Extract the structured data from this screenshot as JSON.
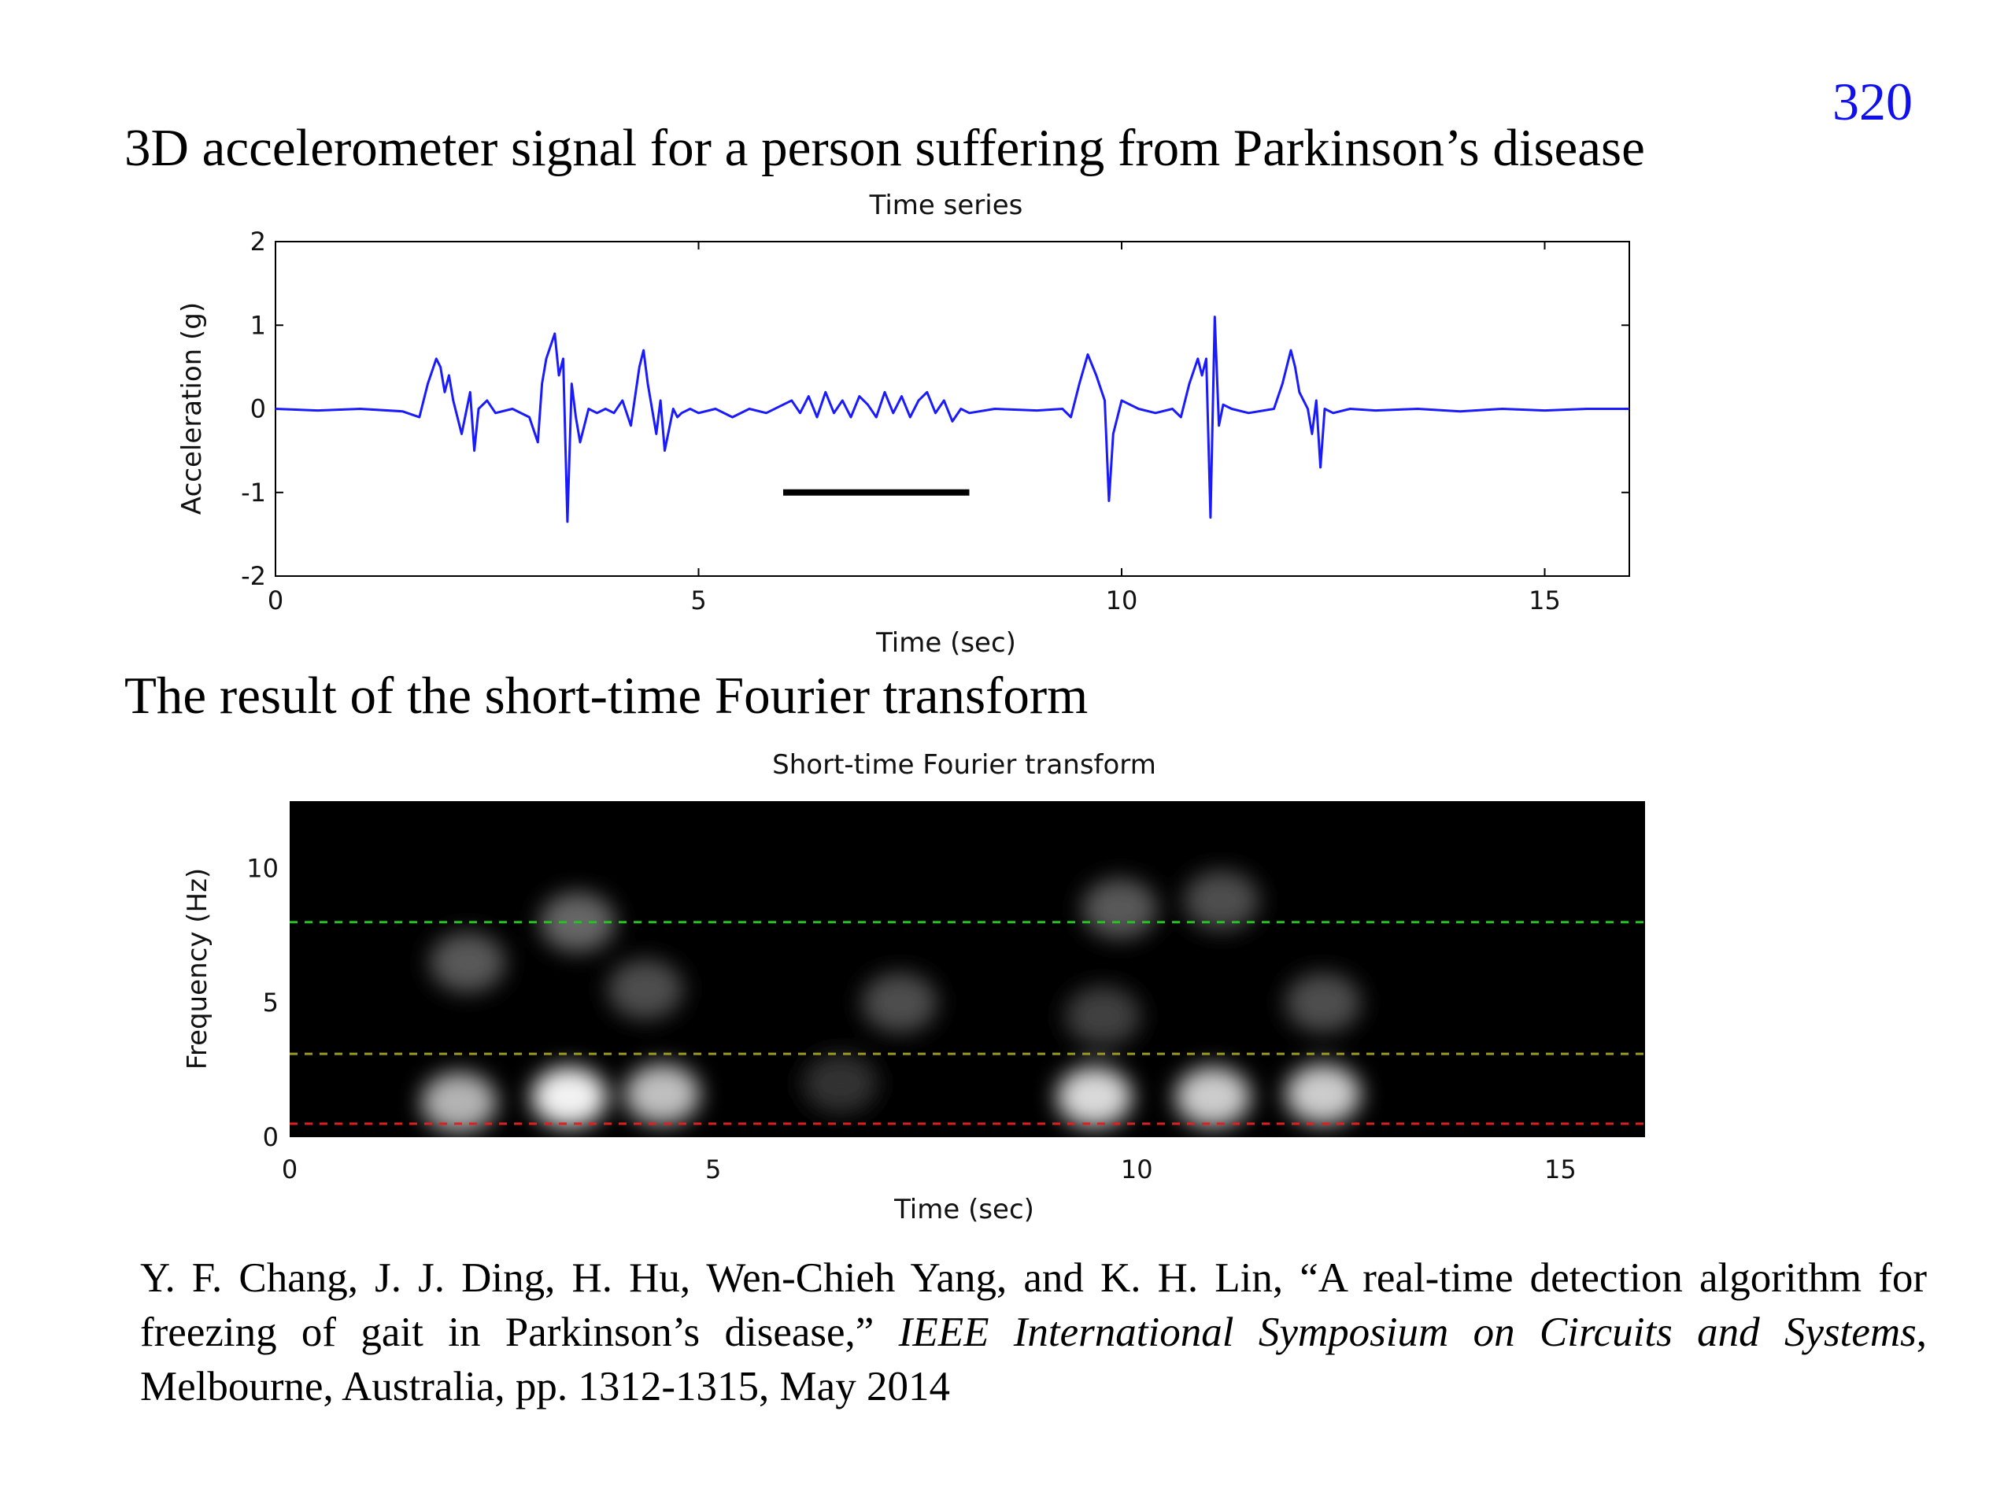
{
  "page_number": "320",
  "heading_1": "3D accelerometer signal for a person suffering from Parkinson’s disease",
  "heading_2": "The result of the short-time Fourier transform",
  "reference": {
    "part1": "Y. F. Chang, J. J. Ding, H. Hu, Wen-Chieh Yang, and K. H. Lin, “A real-time detection algorithm for freezing of gait in Parkinson’s disease,” ",
    "journal": "IEEE International Symposium on Circuits and Systems",
    "part2": ", Melbourne, Australia, pp. 1312-1315, May 2014"
  },
  "colors": {
    "signal": "#1a1aff",
    "marker": "#000000",
    "green_line": "#22c322",
    "red_line": "#e02020",
    "page_number": "#1010ee"
  },
  "chart_data": [
    {
      "type": "line",
      "title": "Time series",
      "xlabel": "Time (sec)",
      "ylabel": "Acceleration (g)",
      "xlim": [
        0,
        16
      ],
      "ylim": [
        -2,
        2
      ],
      "xticks": [
        0,
        5,
        10,
        15
      ],
      "yticks": [
        2,
        1,
        0,
        -1,
        -2
      ],
      "grid": false,
      "series": [
        {
          "x": [
            0,
            0.5,
            1.0,
            1.5,
            1.7,
            1.8,
            1.9,
            1.95,
            2.0,
            2.05,
            2.1,
            2.2,
            2.3,
            2.35,
            2.4,
            2.5,
            2.6,
            2.8,
            3.0,
            3.1,
            3.15,
            3.2,
            3.3,
            3.35,
            3.4,
            3.45,
            3.5,
            3.55,
            3.6,
            3.7,
            3.8,
            3.9,
            4.0,
            4.1,
            4.2,
            4.3,
            4.35,
            4.4,
            4.45,
            4.5,
            4.55,
            4.6,
            4.7,
            4.75,
            4.8,
            4.9,
            5.0,
            5.2,
            5.4,
            5.6,
            5.8,
            6.0,
            6.1,
            6.2,
            6.3,
            6.4,
            6.5,
            6.6,
            6.7,
            6.8,
            6.9,
            7.0,
            7.1,
            7.2,
            7.3,
            7.4,
            7.5,
            7.6,
            7.7,
            7.8,
            7.9,
            8.0,
            8.1,
            8.2,
            8.5,
            9.0,
            9.3,
            9.4,
            9.5,
            9.6,
            9.7,
            9.8,
            9.85,
            9.9,
            10.0,
            10.2,
            10.4,
            10.6,
            10.7,
            10.8,
            10.9,
            10.95,
            11.0,
            11.05,
            11.1,
            11.15,
            11.2,
            11.3,
            11.5,
            11.8,
            11.9,
            12.0,
            12.05,
            12.1,
            12.2,
            12.25,
            12.3,
            12.35,
            12.4,
            12.5,
            12.7,
            13.0,
            13.5,
            14.0,
            14.5,
            15.0,
            15.5,
            16.0
          ],
          "y": [
            0.0,
            -0.02,
            0.0,
            -0.03,
            -0.1,
            0.3,
            0.6,
            0.5,
            0.2,
            0.4,
            0.1,
            -0.3,
            0.2,
            -0.5,
            0.0,
            0.1,
            -0.05,
            0.0,
            -0.1,
            -0.4,
            0.3,
            0.6,
            0.9,
            0.4,
            0.6,
            -1.35,
            0.3,
            -0.1,
            -0.4,
            0.0,
            -0.05,
            0.0,
            -0.05,
            0.1,
            -0.2,
            0.5,
            0.7,
            0.3,
            0.0,
            -0.3,
            0.1,
            -0.5,
            0.0,
            -0.1,
            -0.05,
            0.0,
            -0.05,
            0.0,
            -0.1,
            0.0,
            -0.05,
            0.05,
            0.1,
            -0.05,
            0.15,
            -0.1,
            0.2,
            -0.05,
            0.1,
            -0.1,
            0.15,
            0.05,
            -0.1,
            0.2,
            -0.05,
            0.15,
            -0.1,
            0.1,
            0.2,
            -0.05,
            0.1,
            -0.15,
            0.0,
            -0.05,
            0.0,
            -0.02,
            0.0,
            -0.1,
            0.3,
            0.65,
            0.4,
            0.1,
            -1.1,
            -0.3,
            0.1,
            0.0,
            -0.05,
            0.0,
            -0.1,
            0.3,
            0.6,
            0.4,
            0.6,
            -1.3,
            1.1,
            -0.2,
            0.05,
            0.0,
            -0.05,
            0.0,
            0.3,
            0.7,
            0.5,
            0.2,
            0.0,
            -0.3,
            0.1,
            -0.7,
            0.0,
            -0.05,
            0.0,
            -0.02,
            0.0,
            -0.03,
            0.0,
            -0.02,
            0.0,
            0.0
          ]
        }
      ],
      "marker_segment": {
        "x": [
          6.0,
          8.2
        ],
        "y": -1.0
      }
    },
    {
      "type": "heatmap",
      "title": "Short-time Fourier transform",
      "xlabel": "Time (sec)",
      "ylabel": "Frequency (Hz)",
      "xlim": [
        0,
        16
      ],
      "ylim": [
        0,
        12.5
      ],
      "xticks": [
        0,
        5,
        10,
        15
      ],
      "yticks": [
        10,
        5,
        0
      ],
      "hlines": [
        {
          "y": 8.0,
          "color": "green"
        },
        {
          "y": 3.1,
          "color": "green-red"
        },
        {
          "y": 0.5,
          "color": "red"
        }
      ],
      "blobs": [
        {
          "t": 2.0,
          "f": 1.3,
          "intensity": 0.7
        },
        {
          "t": 3.3,
          "f": 1.5,
          "intensity": 0.95
        },
        {
          "t": 4.4,
          "f": 1.6,
          "intensity": 0.75
        },
        {
          "t": 9.5,
          "f": 1.5,
          "intensity": 0.85
        },
        {
          "t": 10.9,
          "f": 1.5,
          "intensity": 0.8
        },
        {
          "t": 12.2,
          "f": 1.6,
          "intensity": 0.8
        },
        {
          "t": 2.1,
          "f": 6.5,
          "intensity": 0.35
        },
        {
          "t": 3.4,
          "f": 8.0,
          "intensity": 0.4
        },
        {
          "t": 4.2,
          "f": 5.5,
          "intensity": 0.3
        },
        {
          "t": 7.2,
          "f": 5.0,
          "intensity": 0.3
        },
        {
          "t": 9.8,
          "f": 8.5,
          "intensity": 0.35
        },
        {
          "t": 11.0,
          "f": 8.8,
          "intensity": 0.3
        },
        {
          "t": 12.2,
          "f": 5.0,
          "intensity": 0.3
        },
        {
          "t": 9.6,
          "f": 4.5,
          "intensity": 0.25
        },
        {
          "t": 6.5,
          "f": 2.0,
          "intensity": 0.2
        }
      ]
    }
  ]
}
